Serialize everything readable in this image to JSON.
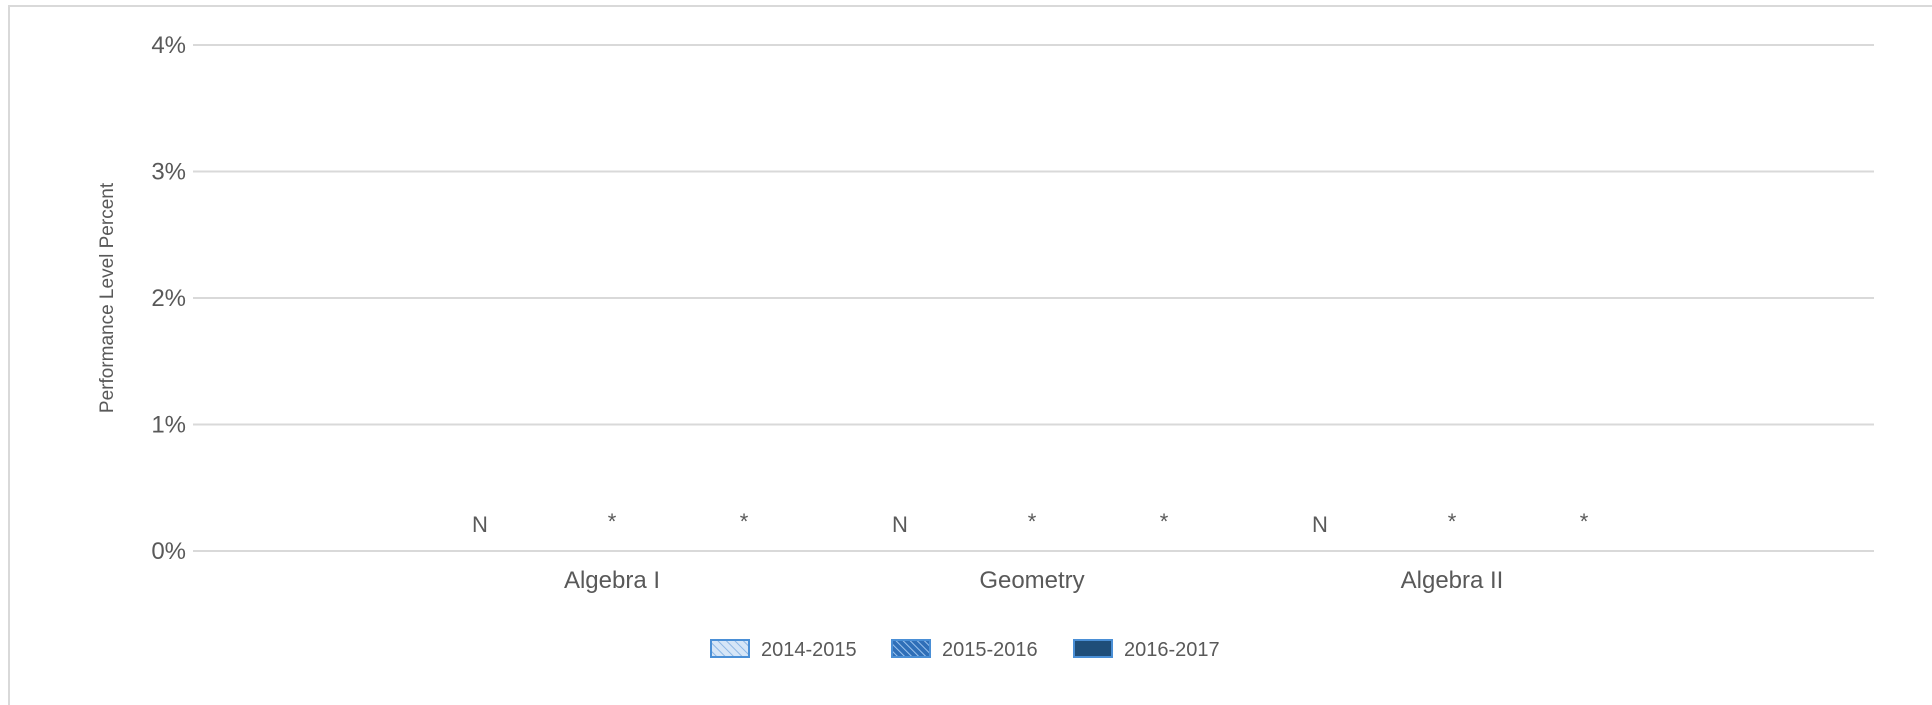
{
  "chart_data": {
    "type": "bar",
    "title": "",
    "xlabel": "",
    "ylabel": "Performance Level Percent",
    "ylim": [
      0,
      4
    ],
    "yticks": [
      "0%",
      "1%",
      "2%",
      "3%",
      "4%"
    ],
    "grid": true,
    "legend_position": "bottom",
    "categories": [
      "Algebra I",
      "Geometry",
      "Algebra II"
    ],
    "series": [
      {
        "name": "2014-2015",
        "values": [
          0,
          0,
          0
        ],
        "labels": [
          "N",
          "N",
          "N"
        ],
        "color": "#a9c8ec",
        "pattern": "light-hatch"
      },
      {
        "name": "2015-2016",
        "values": [
          0,
          0,
          0
        ],
        "labels": [
          "*",
          "*",
          "*"
        ],
        "color": "#4a8fd6",
        "pattern": "dense-hatch"
      },
      {
        "name": "2016-2017",
        "values": [
          0,
          0,
          0
        ],
        "labels": [
          "*",
          "*",
          "*"
        ],
        "color": "#1f4e79",
        "pattern": "solid"
      }
    ]
  }
}
